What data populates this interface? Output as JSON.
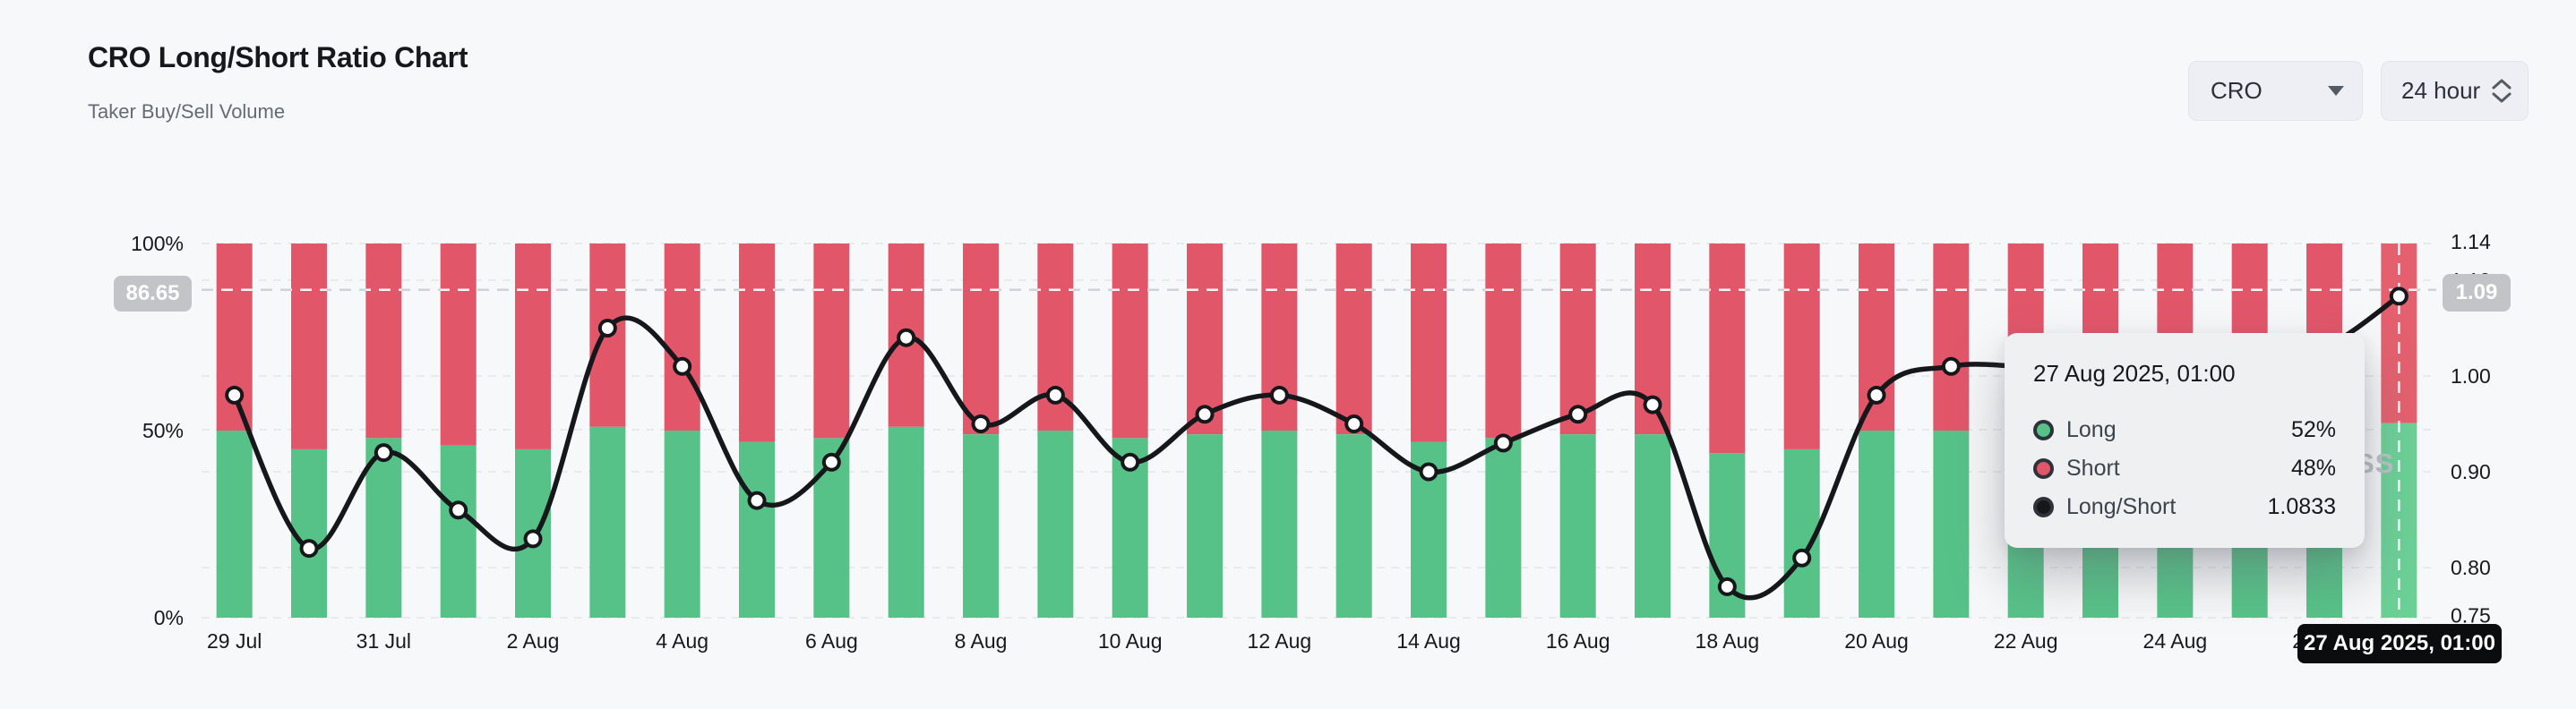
{
  "header": {
    "title": "CRO Long/Short Ratio Chart",
    "subtitle": "Taker Buy/Sell Volume"
  },
  "controls": {
    "symbol_select": {
      "value": "CRO"
    },
    "interval_select": {
      "value": "24 hour"
    }
  },
  "indicator": {
    "left_badge": "86.65",
    "right_badge": "1.09",
    "crosshair_date": "27 Aug 2025, 01:00"
  },
  "tooltip": {
    "date": "27 Aug 2025, 01:00",
    "rows": [
      {
        "label": "Long",
        "value": "52%",
        "dot_color": "#57c287"
      },
      {
        "label": "Short",
        "value": "48%",
        "dot_color": "#e2566a"
      },
      {
        "label": "Long/Short",
        "value": "1.0833",
        "dot_color": "#15171a"
      }
    ]
  },
  "watermark": "SS",
  "chart_data": {
    "type": "bar",
    "subtype": "stacked-bars-with-ratio-line",
    "title": "CRO Long/Short Ratio",
    "categories": [
      "29 Jul",
      "30 Jul",
      "31 Jul",
      "1 Aug",
      "2 Aug",
      "3 Aug",
      "4 Aug",
      "5 Aug",
      "6 Aug",
      "7 Aug",
      "8 Aug",
      "9 Aug",
      "10 Aug",
      "11 Aug",
      "12 Aug",
      "13 Aug",
      "14 Aug",
      "15 Aug",
      "16 Aug",
      "17 Aug",
      "18 Aug",
      "19 Aug",
      "20 Aug",
      "21 Aug",
      "22 Aug",
      "23 Aug",
      "24 Aug",
      "25 Aug",
      "26 Aug",
      "27 Aug"
    ],
    "series": [
      {
        "name": "Long",
        "unit": "%",
        "color": "#57c287",
        "values": [
          50,
          45,
          48,
          46,
          45,
          51,
          50,
          47,
          48,
          51,
          49,
          50,
          48,
          49,
          50,
          49,
          47,
          48,
          49,
          49,
          44,
          45,
          50,
          50,
          50,
          50,
          51,
          51,
          51,
          52
        ]
      },
      {
        "name": "Short",
        "unit": "%",
        "color": "#e2566a",
        "values": [
          50,
          55,
          52,
          54,
          55,
          49,
          50,
          53,
          52,
          49,
          51,
          50,
          52,
          51,
          50,
          51,
          53,
          52,
          51,
          51,
          56,
          55,
          50,
          50,
          50,
          50,
          49,
          49,
          49,
          48
        ]
      },
      {
        "name": "Long/Short",
        "unit": "ratio",
        "color": "#15171a",
        "axis": "right",
        "values": [
          0.98,
          0.82,
          0.92,
          0.86,
          0.83,
          1.05,
          1.01,
          0.87,
          0.91,
          1.04,
          0.95,
          0.98,
          0.91,
          0.96,
          0.98,
          0.95,
          0.9,
          0.93,
          0.96,
          0.97,
          0.78,
          0.81,
          0.98,
          1.01,
          1.01,
          1.01,
          1.02,
          1.02,
          1.03,
          1.0833
        ]
      }
    ],
    "left_axis": {
      "tick_values": [
        100,
        50,
        0
      ],
      "tick_labels": [
        "100%",
        "50%",
        "0%"
      ],
      "range": [
        0,
        100
      ]
    },
    "right_axis": {
      "tick_values": [
        1.14,
        1.1,
        1.0,
        0.9,
        0.8,
        0.75
      ],
      "tick_labels": [
        "1.14",
        "1.10",
        "1.00",
        "0.90",
        "0.80",
        "0.75"
      ],
      "range": [
        0.75,
        1.14
      ]
    },
    "x_tick_every": 2,
    "highlight_index": 29,
    "highlight_value": 1.0833,
    "indicator_line_value_left": 86.65,
    "indicator_line_value_right": 1.09,
    "grid": true,
    "legend_position": "none",
    "colors": {
      "long": "#57c287",
      "long_highlight": "#6bd096",
      "short": "#e2566a",
      "short_highlight": "#e4606e",
      "line": "#15171a",
      "grid": "#e9eaed",
      "dash_indicator": "#cfd2d7",
      "axis_text": "#17191d"
    }
  }
}
